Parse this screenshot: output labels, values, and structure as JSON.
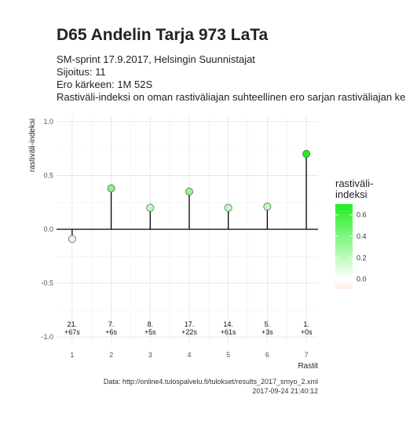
{
  "title": "D65 Andelin Tarja 973 LaTa",
  "subtitle_lines": [
    "SM-sprint 17.9.2017, Helsingin Suunnistajat",
    "Sijoitus: 11",
    "Ero kärkeen: 1M 52S",
    "Rastiväli-indeksi on oman rastiväliajan suhteellinen ero sarjan rastiväliajan kes"
  ],
  "caption_lines": [
    "Data: http://online4.tulospalvelu.fi/tulokset/results_2017_smyo_2.xml",
    "2017-09-24 21:40:12"
  ],
  "chart_data": {
    "type": "lollipop",
    "xlabel": "Rastit",
    "ylabel": "rastiväli-indeksi",
    "x": [
      1,
      2,
      3,
      4,
      5,
      6,
      7
    ],
    "x_ticks": [
      "1",
      "2",
      "3",
      "4",
      "5",
      "6",
      "7"
    ],
    "xlim": [
      0.6,
      7.3
    ],
    "y_ticks": [
      -1.0,
      -0.5,
      0.0,
      0.5,
      1.0
    ],
    "y_tick_labels": [
      "-1.0",
      "-0.5",
      "0.0",
      "0.5",
      "1.0"
    ],
    "ylim": [
      -1.05,
      1.05
    ],
    "grid": true,
    "values": [
      -0.09,
      0.38,
      0.2,
      0.35,
      0.2,
      0.21,
      0.7
    ],
    "point_labels": [
      [
        "21.",
        "+67s"
      ],
      [
        "7.",
        "+6s"
      ],
      [
        "8.",
        "+5s"
      ],
      [
        "17.",
        "+22s"
      ],
      [
        "14.",
        "+61s"
      ],
      [
        "5.",
        "+3s"
      ],
      [
        "1.",
        "+0s"
      ]
    ],
    "legend": {
      "title": "rastiväli-\nindeksi",
      "ticks": [
        0.6,
        0.4,
        0.2,
        0.0
      ],
      "tick_labels": [
        "0.6",
        "0.4",
        "0.2",
        "0.0"
      ],
      "range": [
        -0.09,
        0.7
      ],
      "low_color": "#fdece6",
      "mid_color": "#ffffff",
      "high_color": "#22ee22",
      "placement": "right"
    }
  }
}
